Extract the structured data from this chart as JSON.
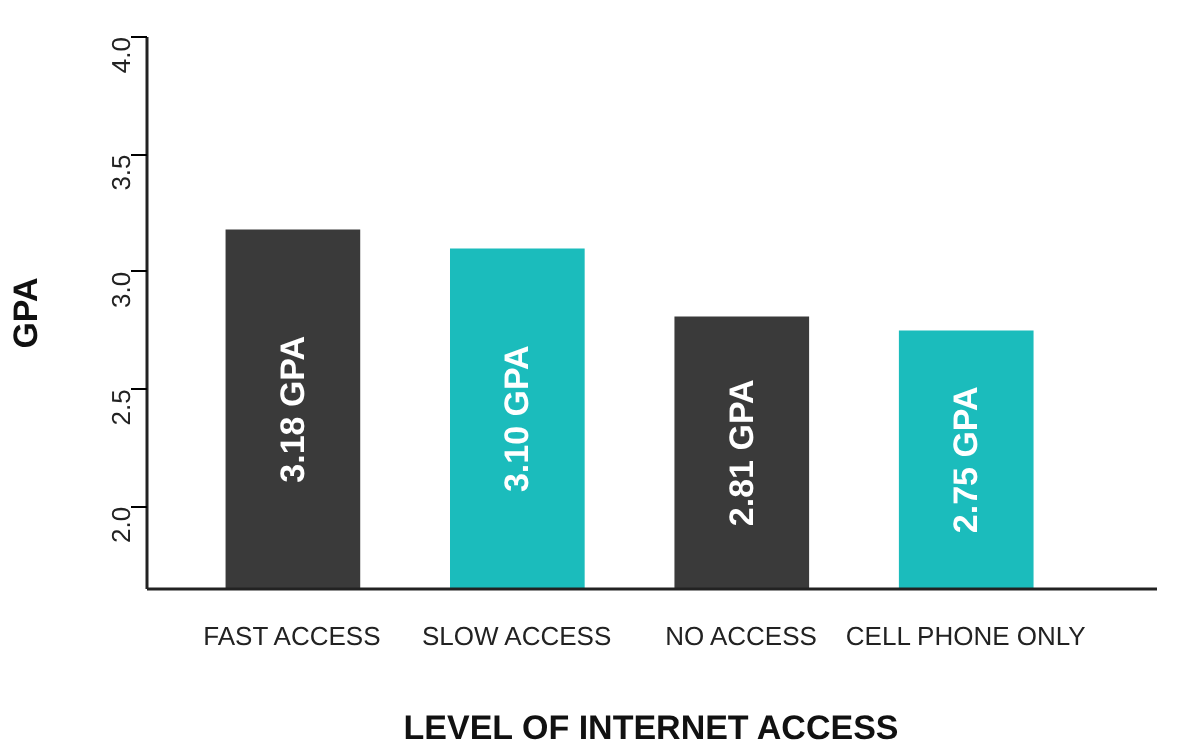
{
  "chart_data": {
    "type": "bar",
    "xlabel": "LEVEL OF INTERNET ACCESS",
    "ylabel": "GPA",
    "categories": [
      "FAST ACCESS",
      "SLOW ACCESS",
      "NO ACCESS",
      "CELL PHONE ONLY"
    ],
    "values": [
      3.18,
      3.1,
      2.81,
      2.75
    ],
    "colors": [
      "#3a3a3a",
      "#1bbcbc",
      "#3a3a3a",
      "#1bbcbc"
    ],
    "value_labels": [
      "3.18 GPA",
      "3.10 GPA",
      "2.81 GPA",
      "2.75 GPA"
    ],
    "ylim": [
      1.65,
      4.0
    ],
    "yticks": [
      {
        "value": 2.0,
        "label": "2.0"
      },
      {
        "value": 2.5,
        "label": "2.5"
      },
      {
        "value": 3.0,
        "label": "3.0"
      },
      {
        "value": 3.5,
        "label": "3.5"
      },
      {
        "value": 4.0,
        "label": "4.0"
      }
    ],
    "grid": false
  }
}
